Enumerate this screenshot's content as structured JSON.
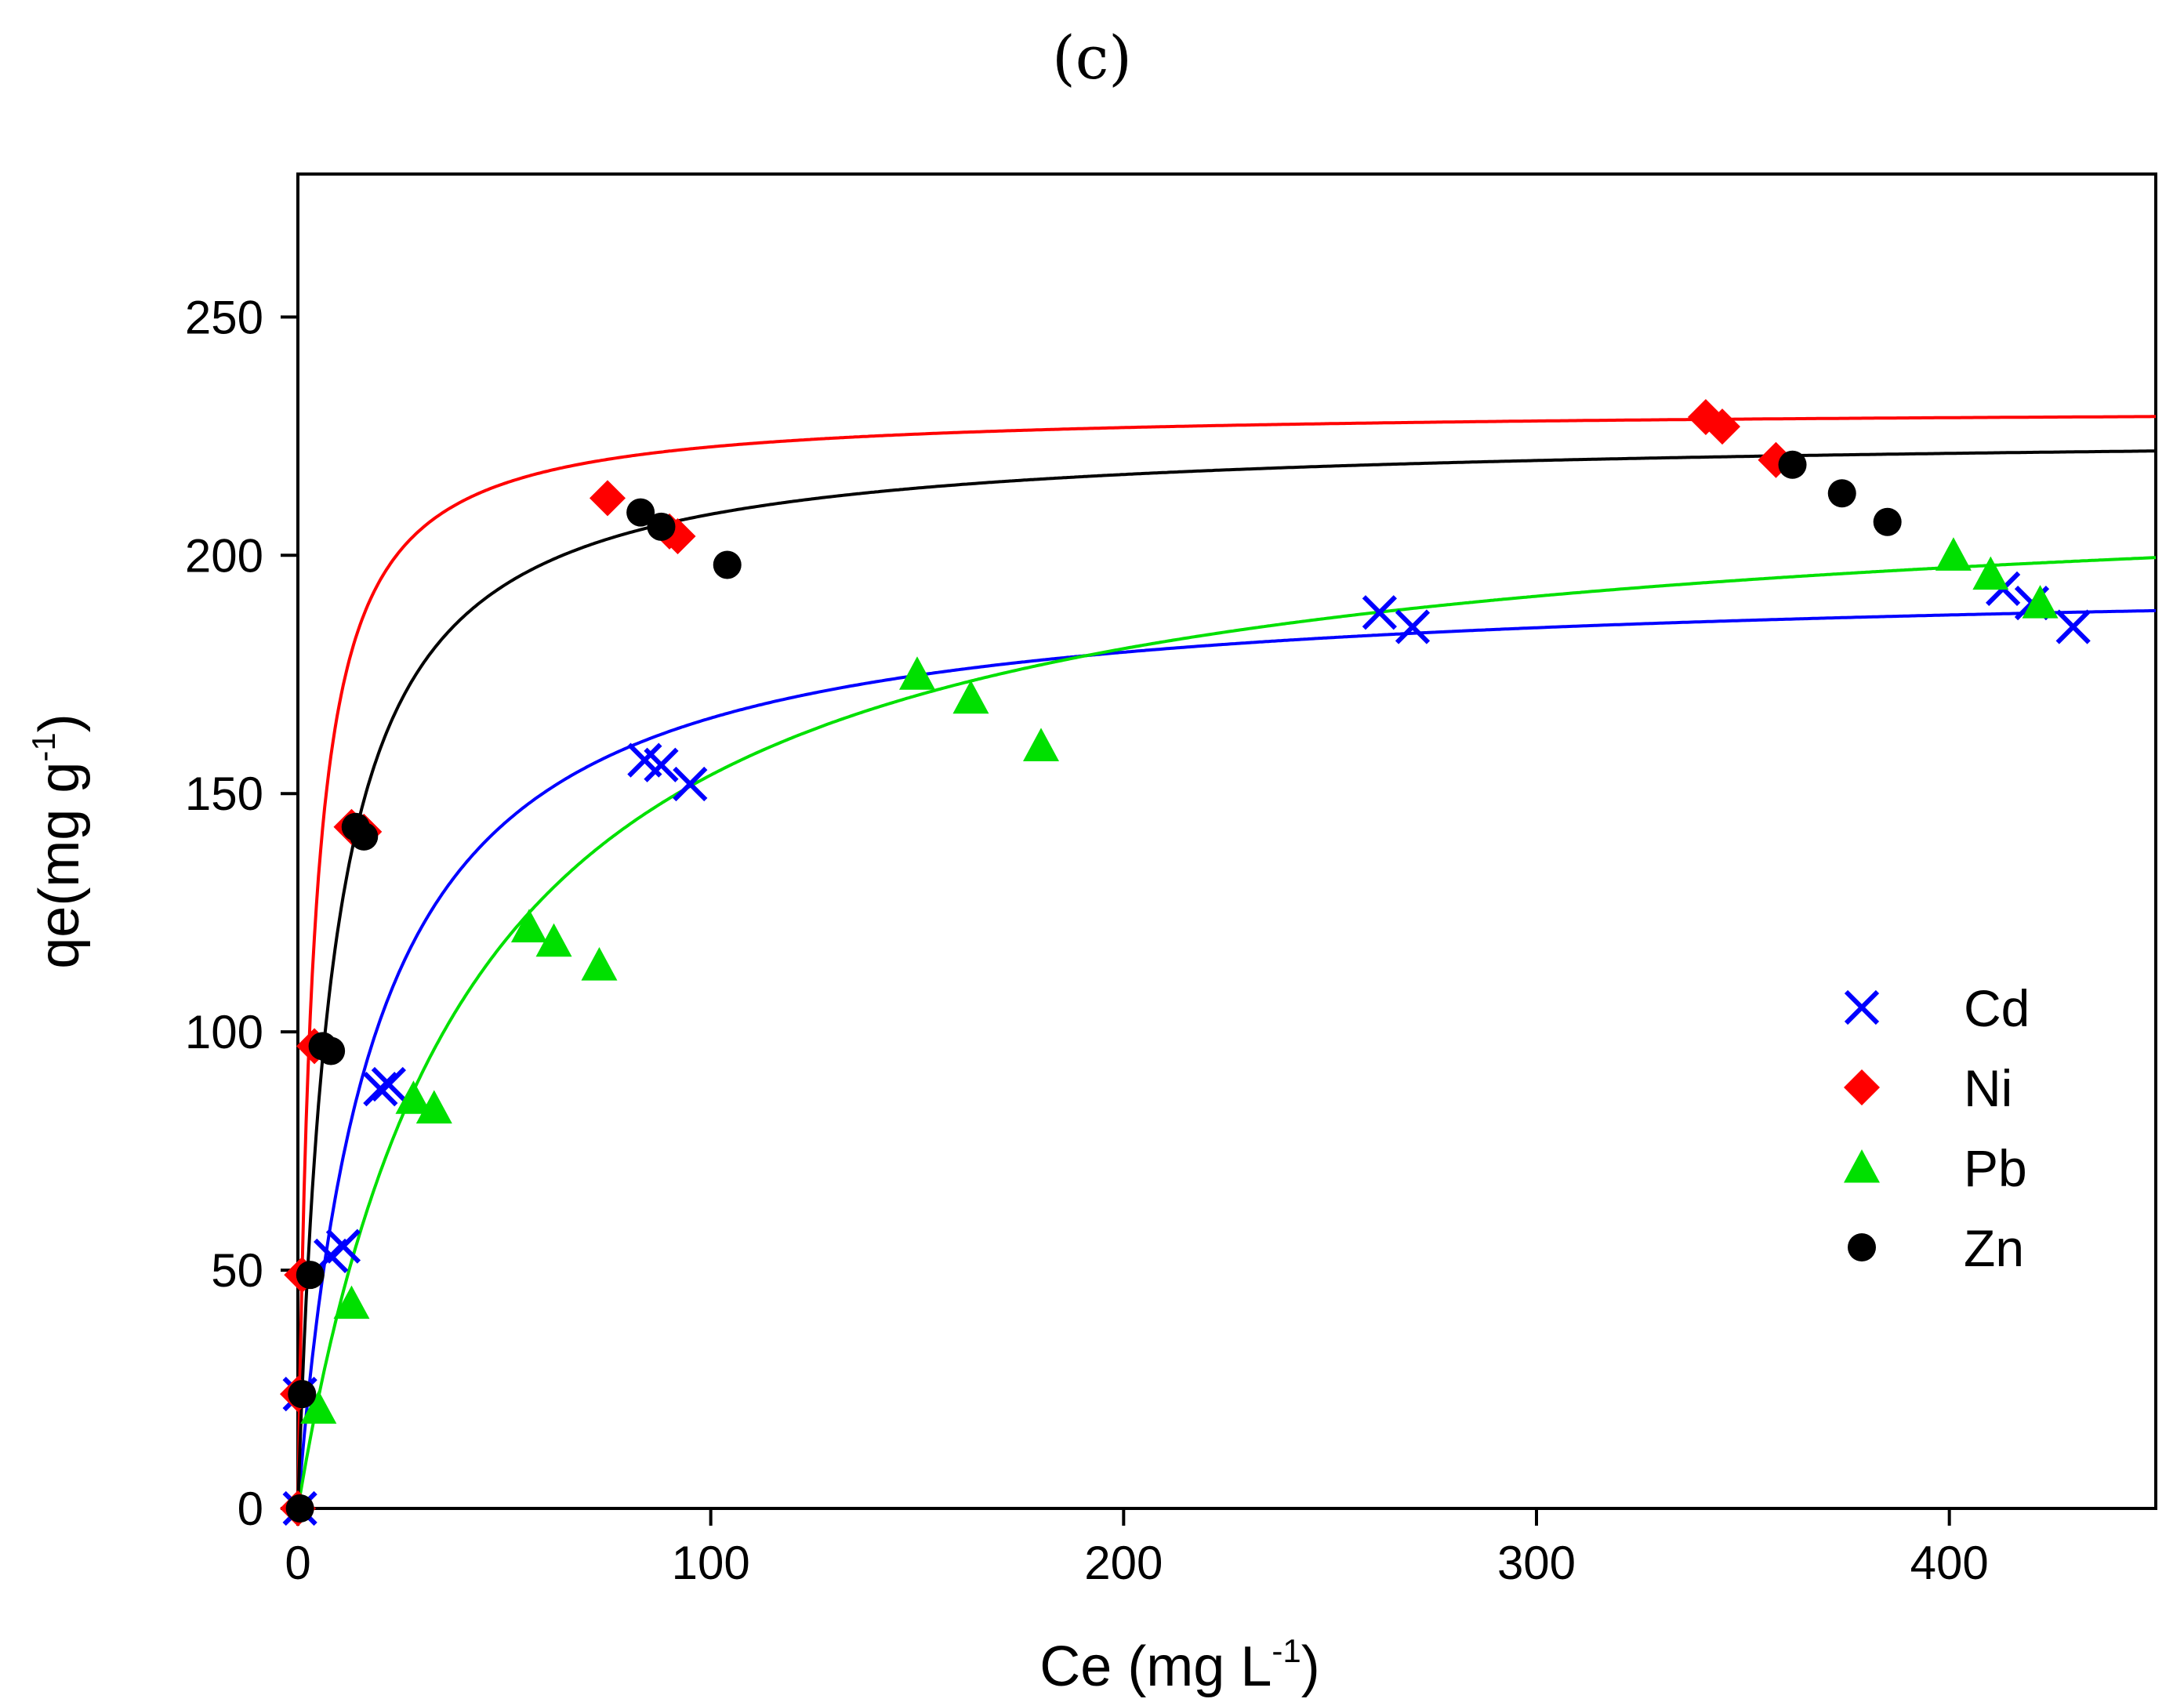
{
  "panel_label": "(c)",
  "chart_data": {
    "type": "scatter",
    "title": "",
    "xlabel": {
      "main": "Ce (mg L",
      "superscript": "-1",
      "close": ")"
    },
    "ylabel": {
      "main": "qe(mg g",
      "superscript": "-1",
      "close": ")"
    },
    "xlim": [
      0,
      450
    ],
    "ylim": [
      0,
      280
    ],
    "xticks": [
      0,
      100,
      200,
      300,
      400
    ],
    "yticks": [
      0,
      50,
      100,
      150,
      200,
      250
    ],
    "grid": false,
    "legend_position": "right-middle",
    "series": [
      {
        "name": "Cd",
        "color": "#0000ff",
        "marker": "x",
        "points": [
          [
            0.5,
            0
          ],
          [
            0.5,
            24
          ],
          [
            8,
            53
          ],
          [
            11,
            55
          ],
          [
            20,
            88
          ],
          [
            22,
            89
          ],
          [
            84,
            157
          ],
          [
            88,
            156
          ],
          [
            95,
            152
          ],
          [
            262,
            188
          ],
          [
            270,
            185
          ],
          [
            413,
            193
          ],
          [
            420,
            190
          ],
          [
            430,
            185
          ]
        ],
        "fit": {
          "model": "langmuir",
          "qmax": 196,
          "KL": 0.055
        }
      },
      {
        "name": "Ni",
        "color": "#ff0000",
        "marker": "diamond",
        "points": [
          [
            0,
            0
          ],
          [
            0,
            24
          ],
          [
            1,
            49
          ],
          [
            4,
            97
          ],
          [
            13,
            143
          ],
          [
            16,
            142
          ],
          [
            75,
            212
          ],
          [
            90,
            205
          ],
          [
            92,
            204
          ],
          [
            341,
            229
          ],
          [
            345,
            227
          ],
          [
            358,
            220
          ]
        ],
        "fit": {
          "model": "langmuir",
          "qmax": 231,
          "KL": 0.27
        }
      },
      {
        "name": "Pb",
        "color": "#00e000",
        "marker": "triangle",
        "points": [
          [
            5,
            21
          ],
          [
            13,
            43
          ],
          [
            28,
            86
          ],
          [
            33,
            84
          ],
          [
            56,
            122
          ],
          [
            62,
            119
          ],
          [
            73,
            114
          ],
          [
            150,
            175
          ],
          [
            163,
            170
          ],
          [
            180,
            160
          ],
          [
            401,
            200
          ],
          [
            410,
            196
          ],
          [
            422,
            190
          ]
        ],
        "fit": {
          "model": "langmuir",
          "qmax": 218,
          "KL": 0.024
        }
      },
      {
        "name": "Zn",
        "color": "#000000",
        "marker": "circle",
        "points": [
          [
            0.5,
            0
          ],
          [
            1,
            24
          ],
          [
            3,
            49
          ],
          [
            6,
            97
          ],
          [
            8,
            96
          ],
          [
            14,
            143
          ],
          [
            16,
            141
          ],
          [
            83,
            209
          ],
          [
            88,
            206
          ],
          [
            104,
            198
          ],
          [
            362,
            219
          ],
          [
            374,
            213
          ],
          [
            385,
            207
          ]
        ],
        "fit": {
          "model": "langmuir",
          "qmax": 226,
          "KL": 0.12
        }
      }
    ]
  }
}
